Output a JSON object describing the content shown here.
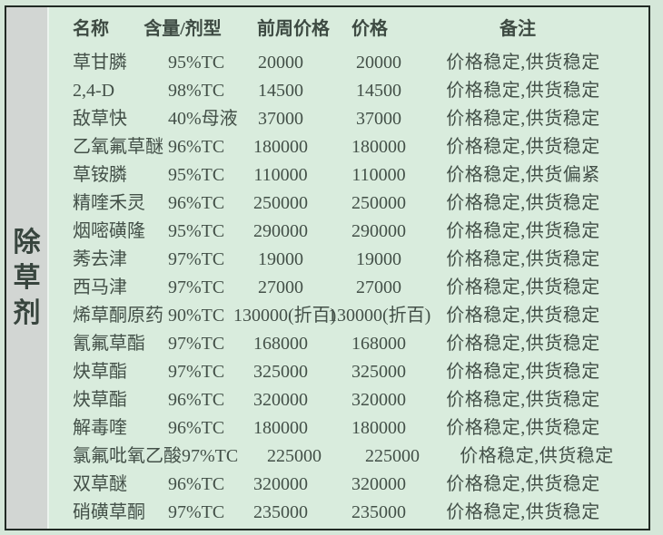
{
  "colors": {
    "page_background": "#d5e7d9",
    "panel_background": "#d9ecdd",
    "sidebar_background": "#d2d6d3",
    "frame_border": "#212a24",
    "text": "#435048"
  },
  "sidebar": {
    "category_label": "除草剂"
  },
  "table": {
    "headers": {
      "name": "名称",
      "content": "含量/剂型",
      "prev_price": "前周价格",
      "price": "价格",
      "remark": "备注"
    },
    "rows": [
      {
        "name": "草甘膦",
        "content": "95%TC",
        "prev_price": "20000",
        "price": "20000",
        "remark": "价格稳定,供货稳定"
      },
      {
        "name": "2,4-D",
        "content": "98%TC",
        "prev_price": "14500",
        "price": "14500",
        "remark": "价格稳定,供货稳定"
      },
      {
        "name": "敌草快",
        "content": "40%母液",
        "prev_price": "37000",
        "price": "37000",
        "remark": "价格稳定,供货稳定"
      },
      {
        "name": "乙氧氟草醚",
        "content": "96%TC",
        "prev_price": "180000",
        "price": "180000",
        "remark": "价格稳定,供货稳定"
      },
      {
        "name": "草铵膦",
        "content": "95%TC",
        "prev_price": "110000",
        "price": "110000",
        "remark": "价格稳定,供货偏紧"
      },
      {
        "name": "精喹禾灵",
        "content": "96%TC",
        "prev_price": "250000",
        "price": "250000",
        "remark": "价格稳定,供货稳定"
      },
      {
        "name": "烟嘧磺隆",
        "content": "95%TC",
        "prev_price": "290000",
        "price": "290000",
        "remark": "价格稳定,供货稳定"
      },
      {
        "name": "莠去津",
        "content": "97%TC",
        "prev_price": "19000",
        "price": "19000",
        "remark": "价格稳定,供货稳定"
      },
      {
        "name": "西马津",
        "content": "97%TC",
        "prev_price": "27000",
        "price": "27000",
        "remark": "价格稳定,供货稳定"
      },
      {
        "name": "烯草酮原药",
        "content": "90%TC",
        "prev_price": "130000(折百)",
        "price": "130000(折百)",
        "remark": "价格稳定,供货稳定"
      },
      {
        "name": "氰氟草酯",
        "content": "97%TC",
        "prev_price": "168000",
        "price": "168000",
        "remark": "价格稳定,供货稳定"
      },
      {
        "name": "炔草酯",
        "content": "97%TC",
        "prev_price": "325000",
        "price": "325000",
        "remark": "价格稳定,供货稳定"
      },
      {
        "name": "炔草酯",
        "content": "96%TC",
        "prev_price": "320000",
        "price": "320000",
        "remark": "价格稳定,供货稳定"
      },
      {
        "name": "解毒喹",
        "content": "96%TC",
        "prev_price": "180000",
        "price": "180000",
        "remark": "价格稳定,供货稳定"
      },
      {
        "name": "氯氟吡氧乙酸",
        "content": "97%TC",
        "prev_price": "225000",
        "price": "225000",
        "remark": "价格稳定,供货稳定"
      },
      {
        "name": "双草醚",
        "content": "96%TC",
        "prev_price": "320000",
        "price": "320000",
        "remark": "价格稳定,供货稳定"
      },
      {
        "name": "硝磺草酮",
        "content": "97%TC",
        "prev_price": "235000",
        "price": "235000",
        "remark": "价格稳定,供货稳定"
      }
    ]
  }
}
